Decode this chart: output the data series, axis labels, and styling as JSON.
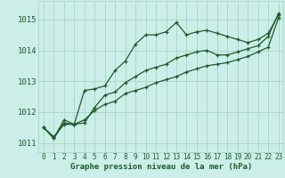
{
  "xlabel": "Graphe pression niveau de la mer (hPa)",
  "bg_color": "#cceee8",
  "line_color": "#1a5c2a",
  "grid_color": "#aad8cc",
  "text_color": "#1a5c2a",
  "ylim": [
    1010.7,
    1015.6
  ],
  "xlim": [
    -0.5,
    23.5
  ],
  "yticks": [
    1011,
    1012,
    1013,
    1014,
    1015
  ],
  "xticks": [
    0,
    1,
    2,
    3,
    4,
    5,
    6,
    7,
    8,
    9,
    10,
    11,
    12,
    13,
    14,
    15,
    16,
    17,
    18,
    19,
    20,
    21,
    22,
    23
  ],
  "series1": [
    1011.5,
    1011.2,
    1011.6,
    1011.6,
    1012.7,
    1012.75,
    1012.85,
    1013.35,
    1013.65,
    1014.2,
    1014.5,
    1014.5,
    1014.6,
    1014.9,
    1014.5,
    1014.6,
    1014.65,
    1014.55,
    1014.45,
    1014.35,
    1014.25,
    1014.35,
    1014.55,
    1015.15
  ],
  "series2": [
    1011.5,
    1011.15,
    1011.65,
    1011.6,
    1011.65,
    1012.15,
    1012.55,
    1012.65,
    1012.95,
    1013.15,
    1013.35,
    1013.45,
    1013.55,
    1013.75,
    1013.85,
    1013.95,
    1014.0,
    1013.85,
    1013.85,
    1013.95,
    1014.05,
    1014.15,
    1014.45,
    1015.2
  ],
  "series3": [
    1011.5,
    1011.15,
    1011.75,
    1011.6,
    1011.75,
    1012.05,
    1012.25,
    1012.35,
    1012.6,
    1012.7,
    1012.8,
    1012.95,
    1013.05,
    1013.15,
    1013.3,
    1013.4,
    1013.5,
    1013.55,
    1013.6,
    1013.7,
    1013.8,
    1013.95,
    1014.1,
    1015.05
  ]
}
